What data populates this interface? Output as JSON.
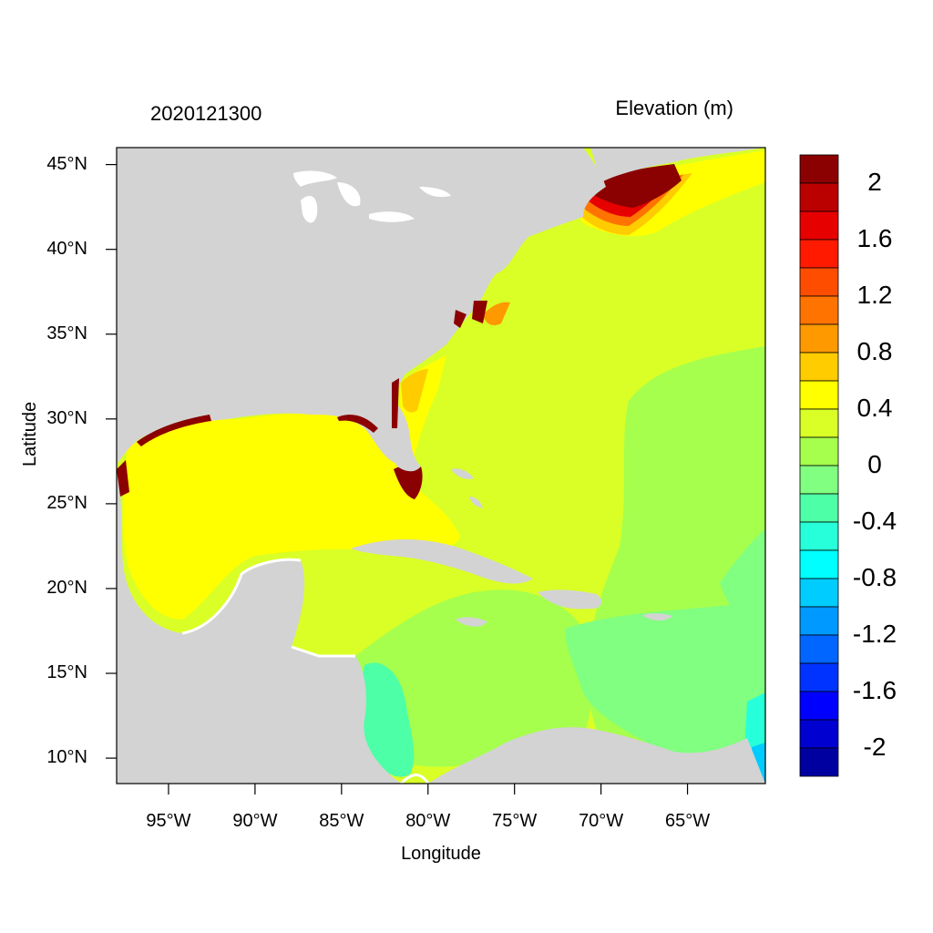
{
  "left_title": "2020121300",
  "right_title": "Elevation (m)",
  "axes": {
    "xlabel": "Longitude",
    "ylabel": "Latitude",
    "x_ticks": [
      {
        "lon": -95,
        "label": "95°W"
      },
      {
        "lon": -90,
        "label": "90°W"
      },
      {
        "lon": -85,
        "label": "85°W"
      },
      {
        "lon": -80,
        "label": "80°W"
      },
      {
        "lon": -75,
        "label": "75°W"
      },
      {
        "lon": -70,
        "label": "70°W"
      },
      {
        "lon": -65,
        "label": "65°W"
      }
    ],
    "y_ticks": [
      {
        "lat": 45,
        "label": "45°N"
      },
      {
        "lat": 40,
        "label": "40°N"
      },
      {
        "lat": 35,
        "label": "35°N"
      },
      {
        "lat": 30,
        "label": "30°N"
      },
      {
        "lat": 25,
        "label": "25°N"
      },
      {
        "lat": 20,
        "label": "20°N"
      },
      {
        "lat": 15,
        "label": "15°N"
      },
      {
        "lat": 10,
        "label": "10°N"
      }
    ],
    "lon_range": [
      -98,
      -60.5
    ],
    "lat_range": [
      8.5,
      46
    ]
  },
  "colorbar": {
    "labels": [
      "2",
      "1.6",
      "1.2",
      "0.8",
      "0.4",
      "0",
      "-0.4",
      "-0.8",
      "-1.2",
      "-1.6",
      "-2"
    ],
    "colors": [
      "#8b0000",
      "#bb0000",
      "#e60000",
      "#ff1a00",
      "#ff4d00",
      "#ff7300",
      "#ff9900",
      "#ffcc00",
      "#ffff00",
      "#d9ff26",
      "#a6ff4d",
      "#80ff80",
      "#4dffa6",
      "#26ffd9",
      "#00ffff",
      "#00ccff",
      "#0099ff",
      "#0066ff",
      "#0033ff",
      "#0000ff",
      "#0000d0",
      "#0000a0"
    ]
  },
  "land_color": "#d3d3d3"
}
